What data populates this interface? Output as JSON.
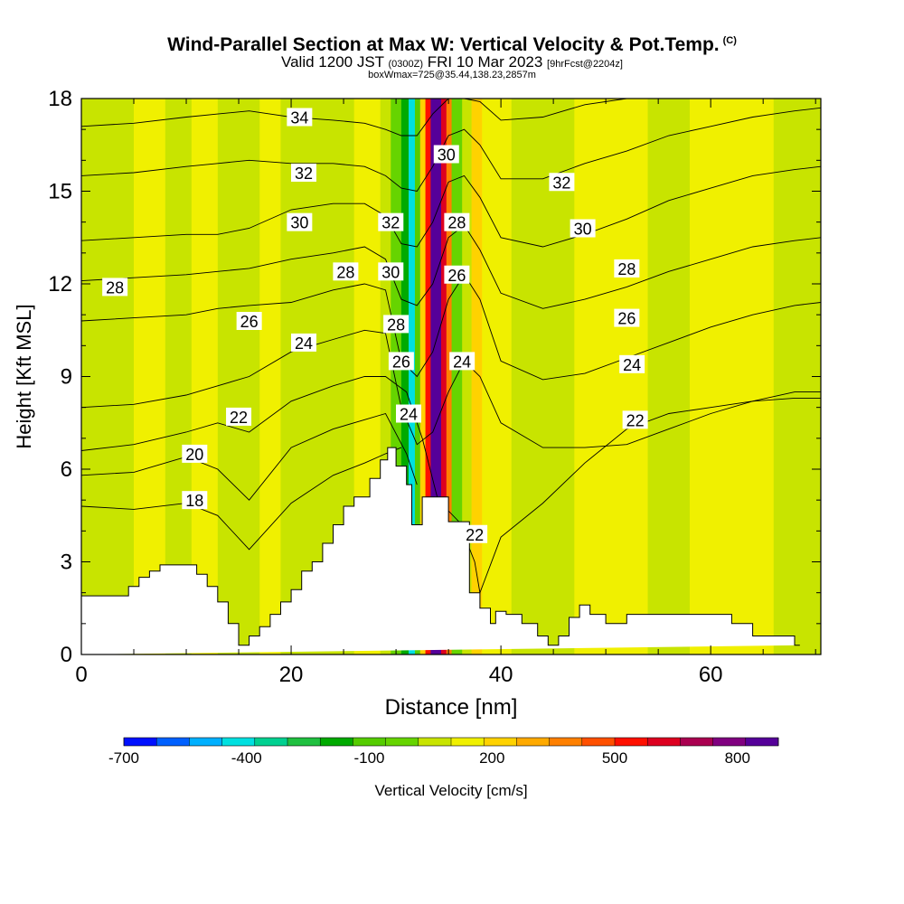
{
  "header": {
    "title": "Wind-Parallel Section at Max W: Vertical Velocity & Pot.Temp.",
    "title_mark": "(C)",
    "valid_prefix": "Valid 1200 JST",
    "valid_utc": "(0300Z)",
    "valid_date": "FRI 10 Mar 2023",
    "forecast_tag": "[9hrFcst@2204z]",
    "box_info": "boxWmax=725@35.44,138.23,2857m"
  },
  "chart_data": {
    "type": "heatmap",
    "xlabel": "Distance [nm]",
    "ylabel": "Height [Kft MSL]",
    "xlim": [
      0,
      70.5
    ],
    "ylim": [
      0,
      18
    ],
    "x_ticks": [
      0,
      20,
      40,
      60
    ],
    "y_ticks": [
      0,
      3,
      6,
      9,
      12,
      15,
      18
    ],
    "terrain": {
      "x": [
        0,
        4.5,
        4.5,
        5.5,
        5.5,
        6.5,
        6.5,
        7.5,
        7.5,
        11,
        11,
        12,
        12,
        13,
        13,
        14,
        14,
        15,
        15,
        16,
        16,
        17,
        17,
        18,
        18,
        19,
        19,
        20,
        20,
        21,
        21,
        22,
        22,
        23,
        23,
        24,
        24,
        25,
        25,
        26,
        26,
        27.5,
        27.5,
        28.5,
        28.5,
        29.2,
        29.2,
        30,
        30,
        31,
        31,
        31.5,
        31.5,
        32.5,
        32.5,
        33.5,
        33.5,
        35,
        35,
        37,
        37,
        38,
        38,
        39,
        39,
        39.5,
        39.5,
        40.5,
        40.5,
        42,
        42,
        43.5,
        43.5,
        44.5,
        44.5,
        45.5,
        45.5,
        46.5,
        46.5,
        47.5,
        47.5,
        48.5,
        48.5,
        50,
        50,
        52,
        52,
        54,
        54,
        57,
        57,
        62,
        62,
        63,
        63,
        64,
        64,
        65.5,
        65.5,
        68,
        68,
        68.5,
        68.5,
        70.5
      ],
      "height": [
        1.9,
        1.9,
        2.2,
        2.2,
        2.5,
        2.5,
        2.7,
        2.7,
        2.9,
        2.9,
        2.6,
        2.6,
        2.2,
        2.2,
        1.7,
        1.7,
        1.0,
        1.0,
        0.3,
        0.3,
        0.6,
        0.6,
        0.9,
        0.9,
        1.3,
        1.3,
        1.7,
        1.7,
        2.1,
        2.1,
        2.7,
        2.7,
        3.0,
        3.0,
        3.6,
        3.6,
        4.2,
        4.2,
        4.8,
        4.8,
        5.1,
        5.1,
        5.7,
        5.7,
        6.3,
        6.3,
        6.7,
        6.7,
        6.1,
        6.1,
        5.5,
        5.5,
        4.2,
        4.2,
        5.1,
        5.1,
        5.1,
        5.1,
        4.3,
        4.3,
        2.0,
        2.0,
        1.5,
        1.5,
        1.0,
        1.0,
        1.4,
        1.4,
        1.3,
        1.3,
        1.0,
        1.0,
        0.6,
        0.6,
        0.3,
        0.3,
        0.6,
        0.6,
        1.2,
        1.2,
        1.6,
        1.6,
        1.3,
        1.3,
        1.0,
        1.0,
        1.3,
        1.3,
        1.3,
        1.3,
        1.3,
        1.3,
        1.0,
        1.0,
        1.0,
        1.0,
        0.6,
        0.6,
        0.6,
        0.6,
        0.3,
        0.3
      ]
    },
    "vertical_velocity_bands": [
      {
        "x0": 0,
        "x1": 5,
        "value": -50
      },
      {
        "x0": 5,
        "x1": 8,
        "value": 0
      },
      {
        "x0": 8,
        "x1": 10.5,
        "value": -50
      },
      {
        "x0": 10.5,
        "x1": 13,
        "value": 0
      },
      {
        "x0": 13,
        "x1": 17,
        "value": -50
      },
      {
        "x0": 17,
        "x1": 19,
        "value": 0
      },
      {
        "x0": 19,
        "x1": 26,
        "value": -50
      },
      {
        "x0": 26,
        "x1": 28.5,
        "value": 0
      },
      {
        "x0": 28.5,
        "x1": 29.5,
        "value": -50
      },
      {
        "x0": 29.5,
        "x1": 30.5,
        "value": -150
      },
      {
        "x0": 30.5,
        "x1": 31.2,
        "value": -300
      },
      {
        "x0": 31.2,
        "x1": 31.8,
        "value": -500
      },
      {
        "x0": 31.8,
        "x1": 32.3,
        "value": -200
      },
      {
        "x0": 32.3,
        "x1": 32.8,
        "value": 150
      },
      {
        "x0": 32.8,
        "x1": 33.3,
        "value": 400
      },
      {
        "x0": 33.3,
        "x1": 34.3,
        "value": 725
      },
      {
        "x0": 34.3,
        "x1": 34.8,
        "value": 550
      },
      {
        "x0": 34.8,
        "x1": 35.3,
        "value": 250
      },
      {
        "x0": 35.3,
        "x1": 36.3,
        "value": -150
      },
      {
        "x0": 36.3,
        "x1": 37.2,
        "value": -50
      },
      {
        "x0": 37.2,
        "x1": 38.2,
        "value": 150
      },
      {
        "x0": 38.2,
        "x1": 41,
        "value": 0
      },
      {
        "x0": 41,
        "x1": 47,
        "value": -50
      },
      {
        "x0": 47,
        "x1": 50,
        "value": 0
      },
      {
        "x0": 50,
        "x1": 54,
        "value": 0
      },
      {
        "x0": 54,
        "x1": 58,
        "value": -50
      },
      {
        "x0": 58,
        "x1": 66,
        "value": 0
      },
      {
        "x0": 66,
        "x1": 70.5,
        "value": -50
      }
    ],
    "contours": [
      {
        "level": 18,
        "label": "18",
        "x": [
          0,
          5,
          10,
          13,
          16,
          20,
          24,
          27,
          29,
          30.5
        ],
        "y": [
          4.8,
          4.7,
          4.9,
          4.5,
          3.4,
          4.9,
          5.8,
          6.2,
          6.5,
          6.7
        ]
      },
      {
        "level": 20,
        "label": "20",
        "x": [
          0,
          5,
          10,
          13,
          16,
          20,
          24,
          27,
          29,
          31,
          32
        ],
        "y": [
          5.8,
          5.9,
          6.4,
          6.0,
          5.0,
          6.7,
          7.3,
          7.6,
          7.8,
          6.5,
          5.5
        ]
      },
      {
        "level": 22,
        "label": "22",
        "x": [
          0,
          5,
          10,
          13,
          16,
          20,
          24,
          27,
          29,
          31,
          32.5,
          34,
          36,
          37.5,
          38,
          40,
          44,
          48,
          52,
          56,
          60,
          64,
          68,
          70.5
        ],
        "y": [
          6.6,
          6.8,
          7.2,
          7.5,
          7.2,
          8.2,
          8.7,
          9.0,
          9.0,
          8.5,
          7.0,
          5.0,
          4.3,
          3.0,
          2.0,
          3.8,
          4.9,
          6.2,
          7.3,
          7.8,
          8.0,
          8.2,
          8.3,
          8.3
        ]
      },
      {
        "level": 24,
        "label": "24",
        "x": [
          0,
          5,
          10,
          13,
          16,
          20,
          24,
          27,
          29,
          30.5,
          32,
          33.5,
          35,
          36.5,
          38,
          40,
          44,
          48,
          52,
          56,
          60,
          64,
          68,
          70.5
        ],
        "y": [
          8.0,
          8.1,
          8.4,
          8.7,
          9.0,
          9.8,
          10.2,
          10.5,
          10.4,
          8.0,
          6.8,
          7.2,
          8.5,
          9.5,
          9.0,
          7.5,
          6.7,
          6.7,
          6.8,
          7.3,
          7.8,
          8.2,
          8.5,
          8.5
        ]
      },
      {
        "level": 26,
        "label": "26",
        "x": [
          0,
          5,
          10,
          13,
          16,
          20,
          24,
          27,
          29,
          30.5,
          32,
          33.5,
          35,
          36.5,
          38,
          40,
          44,
          48,
          52,
          56,
          60,
          64,
          68,
          70.5
        ],
        "y": [
          10.8,
          10.9,
          11.0,
          11.2,
          11.3,
          11.4,
          11.8,
          12.0,
          11.8,
          9.5,
          9.0,
          9.8,
          11.5,
          12.3,
          11.5,
          9.5,
          8.9,
          9.1,
          9.6,
          10.1,
          10.6,
          11.0,
          11.3,
          11.4
        ]
      },
      {
        "level": 28,
        "label": "28",
        "x": [
          0,
          5,
          10,
          13,
          16,
          20,
          24,
          27,
          29,
          30.5,
          32,
          33.5,
          35,
          36.5,
          38,
          40,
          44,
          48,
          52,
          56,
          60,
          64,
          68,
          70.5
        ],
        "y": [
          12.1,
          12.2,
          12.3,
          12.4,
          12.5,
          12.8,
          13.0,
          13.2,
          12.8,
          11.5,
          11.3,
          12.0,
          13.5,
          13.9,
          13.1,
          11.7,
          11.2,
          11.5,
          11.9,
          12.4,
          12.8,
          13.2,
          13.4,
          13.5
        ]
      },
      {
        "level": 30,
        "label": "30",
        "x": [
          0,
          5,
          10,
          13,
          16,
          20,
          24,
          27,
          29,
          30.5,
          32,
          33.5,
          35,
          36.5,
          38,
          40,
          44,
          48,
          52,
          56,
          60,
          64,
          68,
          70.5
        ],
        "y": [
          13.4,
          13.5,
          13.6,
          13.6,
          13.8,
          14.4,
          14.6,
          14.6,
          14.2,
          13.3,
          13.2,
          14.0,
          15.3,
          15.5,
          14.8,
          13.5,
          13.2,
          13.6,
          14.1,
          14.7,
          15.1,
          15.5,
          15.7,
          15.8
        ]
      },
      {
        "level": 32,
        "label": "32",
        "x": [
          0,
          5,
          10,
          13,
          16,
          20,
          24,
          27,
          29,
          30.5,
          32,
          33.5,
          35,
          36.5,
          38,
          40,
          44,
          48,
          52,
          56,
          60,
          64,
          68,
          70.5
        ],
        "y": [
          15.5,
          15.6,
          15.8,
          15.9,
          16.0,
          15.9,
          15.9,
          15.8,
          15.5,
          15.1,
          15.0,
          15.8,
          16.8,
          17.0,
          16.5,
          15.4,
          15.4,
          15.9,
          16.3,
          16.8,
          17.1,
          17.4,
          17.6,
          17.7
        ]
      },
      {
        "level": 34,
        "label": "34",
        "x": [
          0,
          5,
          10,
          13,
          16,
          20,
          24,
          27,
          29,
          30.5,
          32,
          33.5,
          35,
          36.5,
          38,
          40,
          44,
          48,
          52,
          56,
          60,
          64,
          68,
          70.5
        ],
        "y": [
          17.1,
          17.2,
          17.4,
          17.5,
          17.6,
          17.4,
          17.3,
          17.2,
          17.0,
          16.8,
          16.8,
          17.5,
          18.0,
          18.0,
          17.9,
          17.3,
          17.4,
          17.8,
          18.0,
          18.0,
          18.0,
          18.0,
          18.0,
          18.0
        ]
      }
    ],
    "contour_labels": [
      {
        "text": "34",
        "x": 20.8,
        "y": 17.4
      },
      {
        "text": "32",
        "x": 21.2,
        "y": 15.6
      },
      {
        "text": "30",
        "x": 20.8,
        "y": 14.0
      },
      {
        "text": "28",
        "x": 25.2,
        "y": 12.4
      },
      {
        "text": "28",
        "x": 3.2,
        "y": 11.9
      },
      {
        "text": "26",
        "x": 16.0,
        "y": 10.8
      },
      {
        "text": "24",
        "x": 21.2,
        "y": 10.1
      },
      {
        "text": "22",
        "x": 15.0,
        "y": 7.7
      },
      {
        "text": "20",
        "x": 10.8,
        "y": 6.5
      },
      {
        "text": "18",
        "x": 10.8,
        "y": 5.0
      },
      {
        "text": "32",
        "x": 29.5,
        "y": 14.0
      },
      {
        "text": "30",
        "x": 29.5,
        "y": 12.4
      },
      {
        "text": "28",
        "x": 30.0,
        "y": 10.7
      },
      {
        "text": "26",
        "x": 30.5,
        "y": 9.5
      },
      {
        "text": "24",
        "x": 31.2,
        "y": 7.8
      },
      {
        "text": "30",
        "x": 34.8,
        "y": 16.2
      },
      {
        "text": "28",
        "x": 35.8,
        "y": 14.0
      },
      {
        "text": "26",
        "x": 35.8,
        "y": 12.3
      },
      {
        "text": "24",
        "x": 36.3,
        "y": 9.5
      },
      {
        "text": "22",
        "x": 37.5,
        "y": 3.9
      },
      {
        "text": "32",
        "x": 45.8,
        "y": 15.3
      },
      {
        "text": "30",
        "x": 47.8,
        "y": 13.8
      },
      {
        "text": "28",
        "x": 52.0,
        "y": 12.5
      },
      {
        "text": "26",
        "x": 52.0,
        "y": 10.9
      },
      {
        "text": "24",
        "x": 52.5,
        "y": 9.4
      },
      {
        "text": "22",
        "x": 52.8,
        "y": 7.6
      }
    ],
    "colorbar": {
      "label": "Vertical Velocity [cm/s]",
      "tick_labels": [
        "-700",
        "-400",
        "-100",
        "200",
        "500",
        "800"
      ],
      "colors": [
        "#0010ff",
        "#0060ff",
        "#00b0ff",
        "#00e0e0",
        "#00d090",
        "#20c040",
        "#00aa00",
        "#55cc00",
        "#66d400",
        "#c8e400",
        "#f0f000",
        "#ffd200",
        "#ffaa00",
        "#ff8000",
        "#ff5000",
        "#ff1000",
        "#dd0020",
        "#aa0050",
        "#800080",
        "#550099"
      ]
    }
  }
}
